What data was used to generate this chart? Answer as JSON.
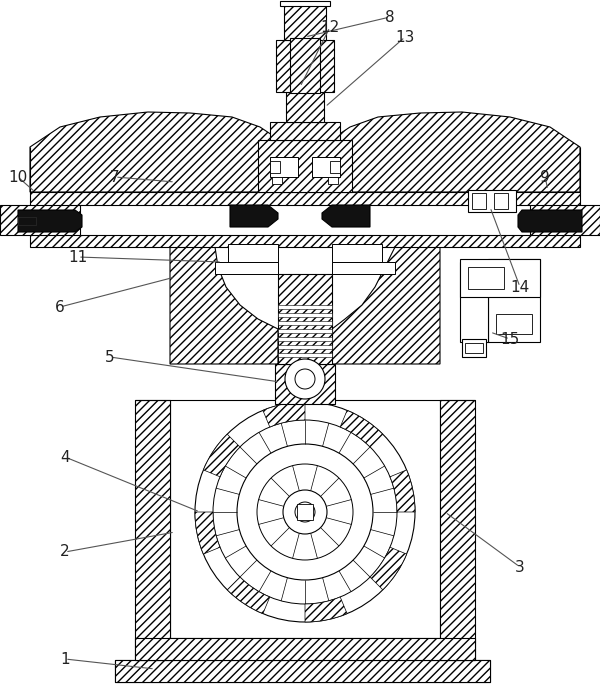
{
  "bg_color": "#ffffff",
  "line_color": "#000000",
  "figsize": [
    6.0,
    6.87
  ],
  "dpi": 100
}
